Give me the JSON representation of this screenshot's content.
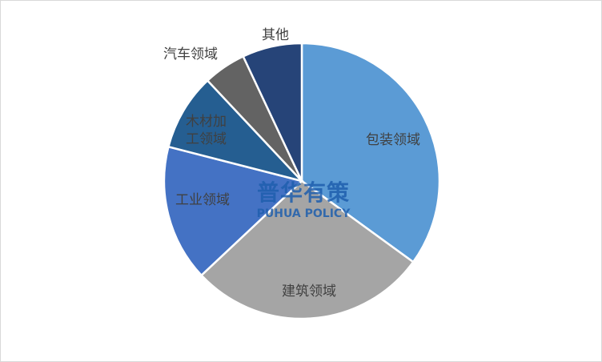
{
  "chart_data": {
    "type": "pie",
    "categories": [
      "包装领域",
      "建筑领域",
      "工业领域",
      "木材加工领域",
      "汽车领域",
      "其他"
    ],
    "values": [
      35,
      28,
      16,
      9,
      5,
      7
    ],
    "colors": [
      "#5b9bd5",
      "#a5a5a5",
      "#4472c4",
      "#255e91",
      "#636363",
      "#264478"
    ],
    "watermark": {
      "title": "普华有策",
      "subtitle": "PUHUA POLICY"
    }
  }
}
